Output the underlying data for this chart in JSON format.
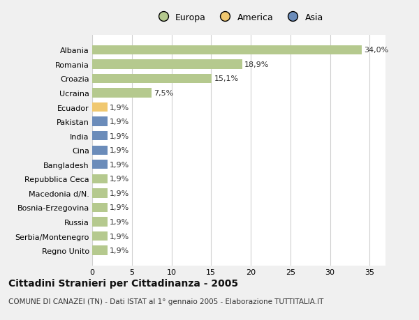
{
  "categories": [
    "Albania",
    "Romania",
    "Croazia",
    "Ucraina",
    "Ecuador",
    "Pakistan",
    "India",
    "Cina",
    "Bangladesh",
    "Repubblica Ceca",
    "Macedonia d/N.",
    "Bosnia-Erzegovina",
    "Russia",
    "Serbia/Montenegro",
    "Regno Unito"
  ],
  "values": [
    34.0,
    18.9,
    15.1,
    7.5,
    1.9,
    1.9,
    1.9,
    1.9,
    1.9,
    1.9,
    1.9,
    1.9,
    1.9,
    1.9,
    1.9
  ],
  "labels": [
    "34,0%",
    "18,9%",
    "15,1%",
    "7,5%",
    "1,9%",
    "1,9%",
    "1,9%",
    "1,9%",
    "1,9%",
    "1,9%",
    "1,9%",
    "1,9%",
    "1,9%",
    "1,9%",
    "1,9%"
  ],
  "colors": [
    "#b5c98e",
    "#b5c98e",
    "#b5c98e",
    "#b5c98e",
    "#f0c870",
    "#6b8cba",
    "#6b8cba",
    "#6b8cba",
    "#6b8cba",
    "#b5c98e",
    "#b5c98e",
    "#b5c98e",
    "#b5c98e",
    "#b5c98e",
    "#b5c98e"
  ],
  "legend_labels": [
    "Europa",
    "America",
    "Asia"
  ],
  "legend_colors": [
    "#b5c98e",
    "#f0c870",
    "#6b8cba"
  ],
  "title": "Cittadini Stranieri per Cittadinanza - 2005",
  "subtitle": "COMUNE DI CANAZEI (TN) - Dati ISTAT al 1° gennaio 2005 - Elaborazione TUTTITALIA.IT",
  "xlim": [
    0,
    37
  ],
  "xticks": [
    0,
    5,
    10,
    15,
    20,
    25,
    30,
    35
  ],
  "background_color": "#f0f0f0",
  "plot_background_color": "#ffffff",
  "grid_color": "#d0d0d0",
  "bar_height": 0.65,
  "title_fontsize": 10,
  "subtitle_fontsize": 7.5,
  "tick_fontsize": 8,
  "label_fontsize": 8,
  "legend_fontsize": 9
}
